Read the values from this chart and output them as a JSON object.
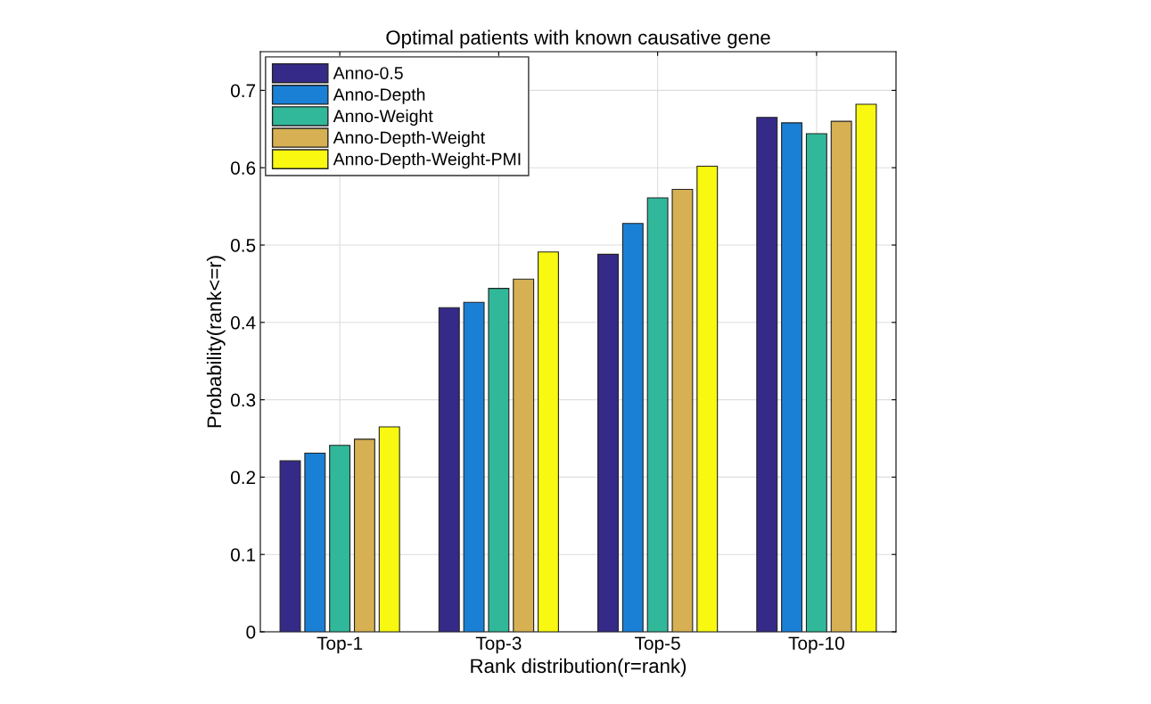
{
  "chart_data": {
    "type": "bar",
    "title": "Optimal patients with known causative gene",
    "xlabel": "Rank distribution(r=rank)",
    "ylabel": "Probability(rank<=r)",
    "categories": [
      "Top-1",
      "Top-3",
      "Top-5",
      "Top-10"
    ],
    "series": [
      {
        "name": "Anno-0.5",
        "color": "#352a87",
        "values": [
          0.221,
          0.419,
          0.488,
          0.665
        ]
      },
      {
        "name": "Anno-Depth",
        "color": "#1a80d6",
        "values": [
          0.231,
          0.426,
          0.528,
          0.658
        ]
      },
      {
        "name": "Anno-Weight",
        "color": "#31b89a",
        "values": [
          0.241,
          0.444,
          0.561,
          0.644
        ]
      },
      {
        "name": "Anno-Depth-Weight",
        "color": "#d6b052",
        "values": [
          0.249,
          0.456,
          0.572,
          0.66
        ]
      },
      {
        "name": "Anno-Depth-Weight-PMI",
        "color": "#f8f810",
        "values": [
          0.265,
          0.491,
          0.602,
          0.682
        ]
      }
    ],
    "ylim": [
      0,
      0.75
    ],
    "yticks": [
      0,
      0.1,
      0.2,
      0.3,
      0.4,
      0.5,
      0.6,
      0.7
    ],
    "grid": true,
    "legend": "top left"
  }
}
